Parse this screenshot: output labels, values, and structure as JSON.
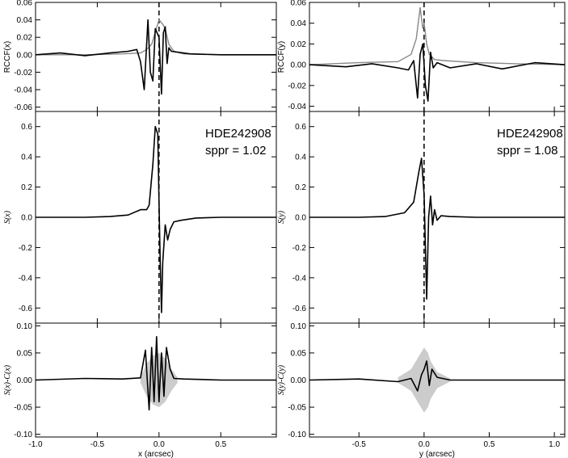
{
  "chart_data": [
    {
      "type": "line",
      "panel": "RCCF(x)",
      "ylabel": "RCCF(x)",
      "xlim": [
        -1.0,
        0.95
      ],
      "ylim": [
        -0.065,
        0.06
      ],
      "yticks": [
        0.06,
        0.04,
        0.02,
        0.0,
        -0.02,
        -0.04,
        -0.06
      ],
      "ytick_labels": [
        "0.06",
        "0.04",
        "0.02",
        "0.00",
        "-0.02",
        "-0.04",
        "-0.06"
      ],
      "dashed_vline_x": 0.0,
      "series": [
        {
          "color": "#000000",
          "x": [
            -1.0,
            -0.8,
            -0.6,
            -0.4,
            -0.25,
            -0.18,
            -0.15,
            -0.12,
            -0.09,
            -0.07,
            -0.05,
            -0.03,
            0.0,
            0.02,
            0.035,
            0.05,
            0.065,
            0.08,
            0.1,
            0.15,
            0.25,
            0.5,
            0.95
          ],
          "y": [
            0.0,
            0.002,
            -0.001,
            0.002,
            0.004,
            0.006,
            -0.008,
            -0.04,
            0.04,
            -0.02,
            -0.03,
            0.03,
            0.02,
            -0.045,
            0.025,
            0.032,
            -0.01,
            0.008,
            0.004,
            0.003,
            0.001,
            0.0,
            0.0
          ]
        },
        {
          "color": "#888888",
          "x": [
            -1.0,
            -0.6,
            -0.3,
            -0.15,
            -0.1,
            -0.06,
            -0.03,
            0.0,
            0.03,
            0.05,
            0.08,
            0.12,
            0.2,
            0.5,
            0.95
          ],
          "y": [
            0.0,
            0.0,
            0.001,
            0.002,
            0.006,
            0.012,
            0.026,
            0.04,
            0.035,
            0.03,
            0.012,
            0.004,
            0.001,
            0.0,
            0.0
          ]
        }
      ]
    },
    {
      "type": "line",
      "panel": "S(x)",
      "ylabel": "S(x)",
      "annotation": [
        "HDE242908",
        "sppr = 1.02"
      ],
      "xlim": [
        -1.0,
        0.95
      ],
      "ylim": [
        -0.7,
        0.7
      ],
      "yticks": [
        0.6,
        0.4,
        0.2,
        0.0,
        -0.2,
        -0.4,
        -0.6
      ],
      "ytick_labels": [
        "0.6",
        "0.4",
        "0.2",
        "0.0",
        "-0.2",
        "-0.4",
        "-0.6"
      ],
      "dashed_vline_x": 0.0,
      "series": [
        {
          "color": "#000000",
          "x": [
            -1.0,
            -0.6,
            -0.4,
            -0.25,
            -0.15,
            -0.1,
            -0.08,
            -0.05,
            -0.03,
            -0.01,
            0.0,
            0.01,
            0.02,
            0.03,
            0.05,
            0.07,
            0.09,
            0.12,
            0.18,
            0.3,
            0.5,
            0.95
          ],
          "y": [
            0.0,
            0.0,
            0.005,
            0.015,
            0.05,
            0.05,
            0.08,
            0.35,
            0.6,
            0.55,
            0.1,
            -0.3,
            -0.63,
            -0.3,
            -0.05,
            -0.15,
            -0.08,
            -0.03,
            -0.02,
            -0.005,
            0.0,
            0.0
          ]
        }
      ]
    },
    {
      "type": "line",
      "panel": "S(x)-C(x)",
      "ylabel": "S(x)-C(x)",
      "xlabel": "x (arcsec)",
      "xlim": [
        -1.0,
        0.95
      ],
      "ylim": [
        -0.105,
        0.105
      ],
      "yticks": [
        0.1,
        0.05,
        0.0,
        -0.05,
        -0.1
      ],
      "ytick_labels": [
        "0.10",
        "0.05",
        "0.00",
        "-0.05",
        "-0.10"
      ],
      "xticks": [
        -1.0,
        -0.5,
        0.0,
        0.5
      ],
      "xtick_labels": [
        "-1.0",
        "-0.5",
        "0.0",
        "0.5"
      ],
      "series": [
        {
          "color": "#000000",
          "x": [
            -1.0,
            -0.6,
            -0.3,
            -0.15,
            -0.11,
            -0.08,
            -0.06,
            -0.04,
            -0.02,
            0.0,
            0.02,
            0.04,
            0.06,
            0.09,
            0.12,
            0.2,
            0.5,
            0.95
          ],
          "y": [
            0.0,
            0.003,
            0.002,
            0.004,
            0.055,
            -0.055,
            0.06,
            -0.04,
            0.08,
            -0.04,
            0.05,
            -0.03,
            0.06,
            0.02,
            0.003,
            0.002,
            0.0,
            0.0
          ]
        },
        {
          "color": "#cccccc",
          "band": true,
          "x": [
            -0.15,
            -0.1,
            -0.05,
            0.0,
            0.05,
            0.1,
            0.15
          ],
          "y_low": [
            -0.005,
            -0.03,
            -0.045,
            -0.05,
            -0.04,
            -0.02,
            -0.005
          ],
          "y_high": [
            0.005,
            0.03,
            0.045,
            0.05,
            0.04,
            0.02,
            0.005
          ]
        }
      ]
    },
    {
      "type": "line",
      "panel": "RCCF(y)",
      "ylabel": "RCCF(y)",
      "xlim": [
        -0.88,
        1.08
      ],
      "ylim": [
        -0.045,
        0.06
      ],
      "yticks": [
        0.06,
        0.04,
        0.02,
        0.0,
        -0.02,
        -0.04
      ],
      "ytick_labels": [
        "0.06",
        "0.04",
        "0.02",
        "0.00",
        "-0.02",
        "-0.04"
      ],
      "dashed_vline_x": 0.0,
      "series": [
        {
          "color": "#000000",
          "x": [
            -0.88,
            -0.6,
            -0.4,
            -0.2,
            -0.12,
            -0.08,
            -0.05,
            -0.03,
            -0.01,
            0.01,
            0.03,
            0.05,
            0.07,
            0.1,
            0.2,
            0.4,
            0.6,
            0.85,
            1.08
          ],
          "y": [
            0.0,
            -0.002,
            0.001,
            -0.003,
            -0.005,
            0.004,
            -0.032,
            0.01,
            0.02,
            -0.02,
            -0.035,
            0.012,
            -0.003,
            0.002,
            -0.003,
            0.001,
            -0.004,
            0.002,
            0.0
          ]
        },
        {
          "color": "#888888",
          "x": [
            -0.88,
            -0.5,
            -0.2,
            -0.1,
            -0.06,
            -0.03,
            -0.01,
            0.0,
            0.02,
            0.04,
            0.08,
            0.15,
            0.4,
            0.7,
            1.08
          ],
          "y": [
            0.0,
            0.002,
            0.003,
            0.01,
            0.025,
            0.055,
            0.035,
            0.04,
            0.02,
            0.01,
            0.005,
            0.004,
            0.002,
            0.001,
            0.0
          ]
        }
      ]
    },
    {
      "type": "line",
      "panel": "S(y)",
      "ylabel": "S(y)",
      "annotation": [
        "HDE242908",
        "sppr = 1.08"
      ],
      "xlim": [
        -0.88,
        1.08
      ],
      "ylim": [
        -0.7,
        0.7
      ],
      "yticks": [
        0.6,
        0.4,
        0.2,
        0.0,
        -0.2,
        -0.4,
        -0.6
      ],
      "ytick_labels": [
        "0.6",
        "0.4",
        "0.2",
        "0.0",
        "-0.2",
        "-0.4",
        "-0.6"
      ],
      "dashed_vline_x": 0.0,
      "series": [
        {
          "color": "#000000",
          "x": [
            -0.88,
            -0.5,
            -0.3,
            -0.15,
            -0.08,
            -0.04,
            -0.02,
            0.0,
            0.01,
            0.02,
            0.035,
            0.05,
            0.065,
            0.08,
            0.1,
            0.13,
            0.2,
            0.4,
            1.08
          ],
          "y": [
            0.0,
            0.0,
            0.005,
            0.03,
            0.1,
            0.3,
            0.39,
            0.15,
            -0.2,
            -0.54,
            0.0,
            0.14,
            -0.05,
            0.05,
            -0.02,
            0.01,
            0.005,
            0.0,
            0.0
          ]
        }
      ]
    },
    {
      "type": "line",
      "panel": "S(y)-C(y)",
      "ylabel": "S(y)-C(y)",
      "xlabel": "y (arcsec)",
      "xlim": [
        -0.88,
        1.08
      ],
      "ylim": [
        -0.105,
        0.105
      ],
      "yticks": [
        0.1,
        0.05,
        0.0,
        -0.05,
        -0.1
      ],
      "ytick_labels": [
        "0.10",
        "0.05",
        "0.00",
        "-0.05",
        "-0.10"
      ],
      "xticks": [
        -0.5,
        0.0,
        0.5,
        1.0
      ],
      "xtick_labels": [
        "-0.5",
        "0.0",
        "0.5",
        "1.0"
      ],
      "series": [
        {
          "color": "#000000",
          "x": [
            -0.88,
            -0.5,
            -0.2,
            -0.1,
            -0.05,
            -0.02,
            0.0,
            0.02,
            0.04,
            0.06,
            0.1,
            0.2,
            0.5,
            1.08
          ],
          "y": [
            0.0,
            0.002,
            -0.003,
            0.003,
            -0.02,
            0.01,
            0.02,
            0.035,
            -0.01,
            0.02,
            0.005,
            0.0,
            0.0,
            0.0
          ]
        },
        {
          "color": "#cccccc",
          "band": true,
          "x": [
            -0.2,
            -0.1,
            -0.05,
            0.0,
            0.03,
            0.05,
            0.1,
            0.2
          ],
          "y_low": [
            -0.005,
            -0.02,
            -0.04,
            -0.06,
            -0.05,
            -0.035,
            -0.015,
            -0.003
          ],
          "y_high": [
            0.005,
            0.02,
            0.04,
            0.06,
            0.05,
            0.035,
            0.015,
            0.003
          ]
        }
      ]
    }
  ]
}
